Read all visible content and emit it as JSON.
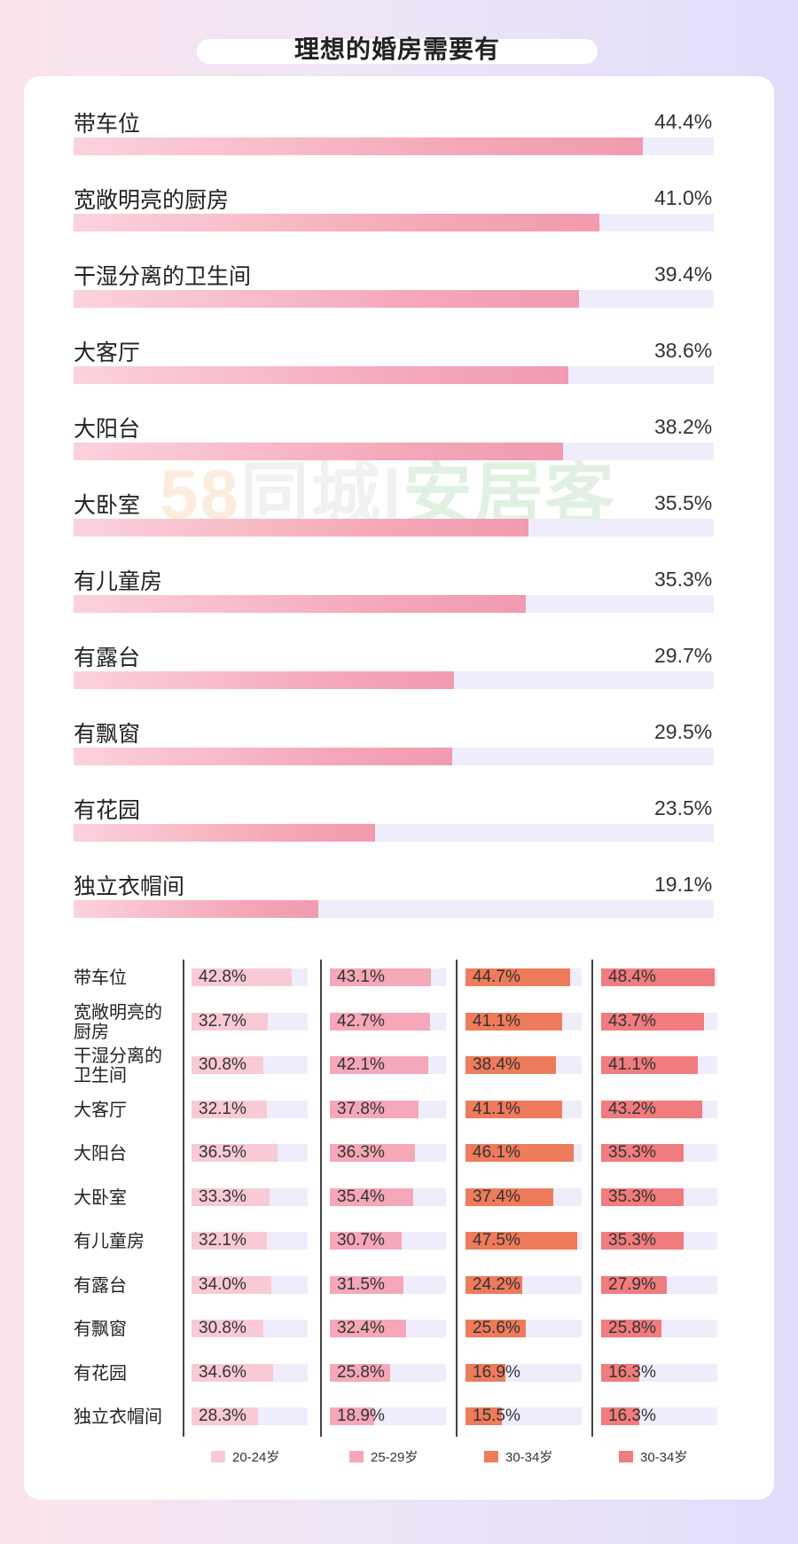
{
  "title": "理想的婚房需要有",
  "watermark": {
    "part1": "58",
    "part2": "同城",
    "part3": "安居客"
  },
  "colors": {
    "track": "#efedfb",
    "group1": "#f8cad6",
    "group2": "#f4a8ba",
    "group3": "#ee7b5b",
    "group4": "#f07c7d"
  },
  "chart_data": [
    {
      "type": "bar",
      "orientation": "horizontal",
      "categories": [
        "带车位",
        "宽敞明亮的厨房",
        "干湿分离的卫生间",
        "大客厅",
        "大阳台",
        "大卧室",
        "有儿童房",
        "有露台",
        "有飘窗",
        "有花园",
        "独立衣帽间"
      ],
      "values": [
        44.4,
        41.0,
        39.4,
        38.6,
        38.2,
        35.5,
        35.3,
        29.7,
        29.5,
        23.5,
        19.1
      ],
      "value_labels": [
        "44.4%",
        "41.0%",
        "39.4%",
        "38.6%",
        "38.2%",
        "35.5%",
        "35.3%",
        "29.7%",
        "29.5%",
        "23.5%",
        "19.1%"
      ],
      "xlim": [
        0,
        50
      ]
    },
    {
      "type": "bar",
      "orientation": "horizontal",
      "row_labels": [
        "带车位",
        "宽敞明亮的\n厨房",
        "干湿分离的\n卫生间",
        "大客厅",
        "大阳台",
        "大卧室",
        "有儿童房",
        "有露台",
        "有飘窗",
        "有花园",
        "独立衣帽间"
      ],
      "series": [
        {
          "name": "20-24岁",
          "values": [
            42.8,
            32.7,
            30.8,
            32.1,
            36.5,
            33.3,
            32.1,
            34.0,
            30.8,
            34.6,
            28.3
          ],
          "labels": [
            "42.8%",
            "32.7%",
            "30.8%",
            "32.1%",
            "36.5%",
            "33.3%",
            "32.1%",
            "34.0%",
            "30.8%",
            "34.6%",
            "28.3%"
          ]
        },
        {
          "name": "25-29岁",
          "values": [
            43.1,
            42.7,
            42.1,
            37.8,
            36.3,
            35.4,
            30.7,
            31.5,
            32.4,
            25.8,
            18.9
          ],
          "labels": [
            "43.1%",
            "42.7%",
            "42.1%",
            "37.8%",
            "36.3%",
            "35.4%",
            "30.7%",
            "31.5%",
            "32.4%",
            "25.8%",
            "18.9%"
          ]
        },
        {
          "name": "30-34岁",
          "values": [
            44.7,
            41.1,
            38.4,
            41.1,
            46.1,
            37.4,
            47.5,
            24.2,
            25.6,
            16.9,
            15.5
          ],
          "labels": [
            "44.7%",
            "41.1%",
            "38.4%",
            "41.1%",
            "46.1%",
            "37.4%",
            "47.5%",
            "24.2%",
            "25.6%",
            "16.9%",
            "15.5%"
          ]
        },
        {
          "name": "30-34岁",
          "values": [
            48.4,
            43.7,
            41.1,
            43.2,
            35.3,
            35.3,
            35.3,
            27.9,
            25.8,
            16.3,
            16.3
          ],
          "labels": [
            "48.4%",
            "43.7%",
            "41.1%",
            "43.2%",
            "35.3%",
            "35.3%",
            "35.3%",
            "27.9%",
            "25.8%",
            "16.3%",
            "16.3%"
          ]
        }
      ],
      "xlim": [
        0,
        50
      ],
      "legend": "bottom"
    }
  ]
}
